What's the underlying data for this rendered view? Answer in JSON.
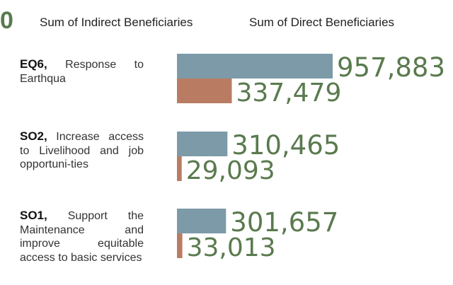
{
  "chart_data": {
    "type": "bar",
    "orientation": "horizontal",
    "legend_marker": "0",
    "legend_placement": "top",
    "categories": [
      {
        "code": "EQ6,",
        "text": "Response to Earthqua"
      },
      {
        "code": "SO2,",
        "text": "Increase access to Livelihood and job opportuni-ties"
      },
      {
        "code": "SO1,",
        "text": "Support the Maintenance and improve equitable access to basic services"
      }
    ],
    "series": [
      {
        "name": "Sum of Indirect Beneficiaries",
        "color": "#7c9aa8",
        "values": [
          957883,
          310465,
          301657
        ],
        "labels": [
          "957,883",
          "310,465",
          "301,657"
        ]
      },
      {
        "name": "Sum of Direct Beneficiaries",
        "color": "#b97c63",
        "values": [
          337479,
          29093,
          33013
        ],
        "labels": [
          "337,479",
          "29,093",
          "33,013"
        ]
      }
    ],
    "value_label_color": "#5a7a4e",
    "grid": false
  }
}
